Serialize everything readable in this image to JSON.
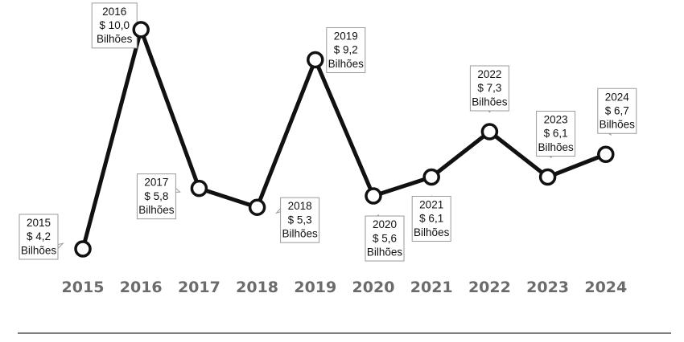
{
  "chart_data": {
    "type": "line",
    "categories": [
      "2015",
      "2016",
      "2017",
      "2018",
      "2019",
      "2020",
      "2021",
      "2022",
      "2023",
      "2024"
    ],
    "series": [
      {
        "values": [
          4.2,
          10.0,
          5.8,
          5.3,
          9.2,
          5.6,
          6.1,
          7.3,
          6.1,
          6.7
        ],
        "data_labels": [
          [
            "2015",
            "$ 4,2",
            "Bilhões"
          ],
          [
            "2016",
            "$ 10,0",
            "Bilhões"
          ],
          [
            "2017",
            "$ 5,8",
            "Bilhões"
          ],
          [
            "2018",
            "$ 5,3",
            "Bilhões"
          ],
          [
            "2019",
            "$ 9,2",
            "Bilhões"
          ],
          [
            "2020",
            "$ 5,6",
            "Bilhões"
          ],
          [
            "2021",
            "$ 6,1",
            "Bilhões"
          ],
          [
            "2022",
            "$ 7,3",
            "Bilhões"
          ],
          [
            "2023",
            "$ 6,1",
            "Bilhões"
          ],
          [
            "2024",
            "$ 6,7",
            "Bilhões"
          ]
        ]
      }
    ],
    "grid": false,
    "legend": "none",
    "colors": {
      "line": "#111111",
      "marker_fill": "#ffffff",
      "axis_labels": "#6b6b6b",
      "baseline": "#333333"
    }
  }
}
